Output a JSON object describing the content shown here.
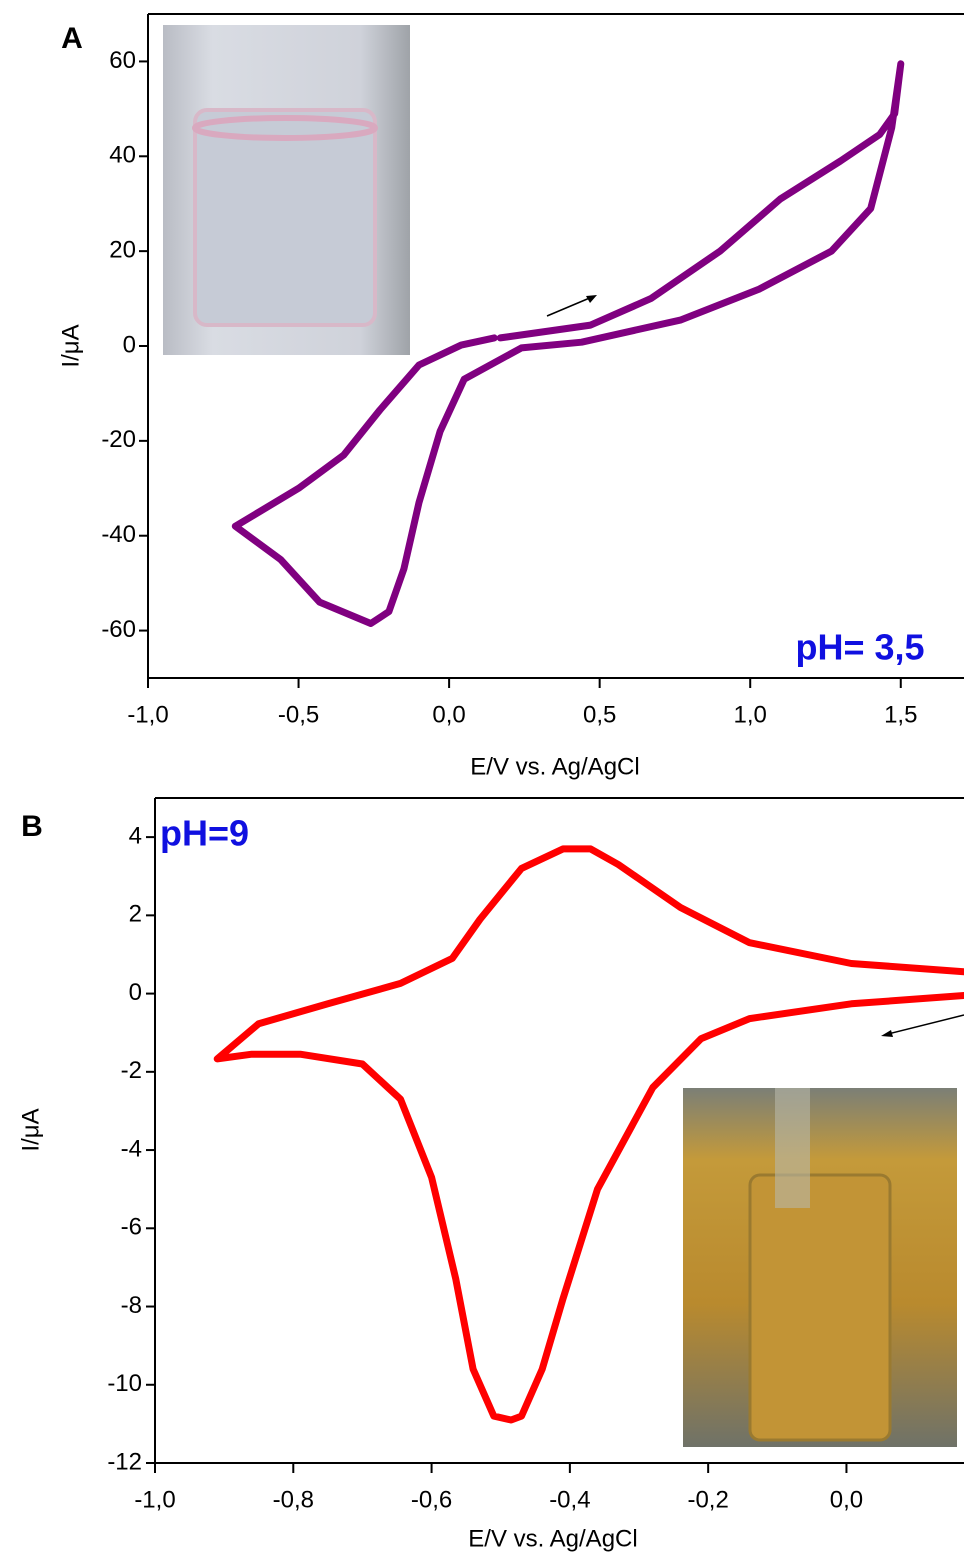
{
  "chart_data": [
    {
      "type": "line",
      "label": "A",
      "annotation": "pH= 3,5",
      "xlabel": "E/V vs. Ag/AgCl",
      "ylabel": "I/μA",
      "color": "#800080",
      "x": [
        0.17,
        0.47,
        0.67,
        0.9,
        1.1,
        1.3,
        1.43,
        1.48,
        1.5,
        1.47,
        1.4,
        1.27,
        1.03,
        0.77,
        0.44,
        0.24,
        0.05,
        -0.03,
        -0.1,
        -0.15,
        -0.2,
        -0.26,
        -0.43,
        -0.56,
        -0.71,
        -0.5,
        -0.35,
        -0.23,
        -0.1,
        0.04,
        0.15
      ],
      "values": [
        1.7,
        4.4,
        10,
        20,
        31,
        39,
        44.6,
        49,
        59.5,
        46,
        29,
        20,
        12,
        5.5,
        0.8,
        -0.4,
        -7,
        -18,
        -33,
        -47,
        -56,
        -58.5,
        -54,
        -45,
        -38,
        -30,
        -23,
        -13.5,
        -4,
        0.2,
        1.7
      ],
      "xlim": [
        -1.0,
        1.71
      ],
      "ylim": [
        -70,
        70
      ],
      "xticks": [
        {
          "value": -1.0,
          "label": "-1,0"
        },
        {
          "value": -0.5,
          "label": "-0,5"
        },
        {
          "value": 0.0,
          "label": "0,0"
        },
        {
          "value": 0.5,
          "label": "0,5"
        },
        {
          "value": 1.0,
          "label": "1,0"
        },
        {
          "value": 1.5,
          "label": "1,5"
        }
      ],
      "yticks": [
        -60,
        -40,
        -20,
        0,
        20,
        40,
        60
      ]
    },
    {
      "type": "line",
      "label": "B",
      "annotation": "pH=9",
      "xlabel": "E/V vs. Ag/AgCl",
      "ylabel": "I/μA",
      "color": "#ff0000",
      "x": [
        0.17,
        0.007,
        -0.14,
        -0.21,
        -0.28,
        -0.36,
        -0.41,
        -0.44,
        -0.47,
        -0.485,
        -0.51,
        -0.54,
        -0.565,
        -0.6,
        -0.645,
        -0.7,
        -0.79,
        -0.86,
        -0.91,
        -0.85,
        -0.75,
        -0.645,
        -0.57,
        -0.53,
        -0.47,
        -0.41,
        -0.37,
        -0.33,
        -0.24,
        -0.14,
        0.007,
        0.17
      ],
      "values": [
        -0.05,
        -0.26,
        -0.64,
        -1.15,
        -2.4,
        -5,
        -7.8,
        -9.6,
        -10.8,
        -10.9,
        -10.8,
        -9.6,
        -7.3,
        -4.7,
        -2.7,
        -1.8,
        -1.55,
        -1.55,
        -1.67,
        -0.77,
        -0.26,
        0.26,
        0.9,
        1.9,
        3.2,
        3.7,
        3.7,
        3.3,
        2.2,
        1.3,
        0.77,
        0.56
      ],
      "xlim": [
        -1.0,
        0.17
      ],
      "ylim": [
        -12,
        5
      ],
      "xticks": [
        {
          "value": -1.0,
          "label": "-1,0"
        },
        {
          "value": -0.8,
          "label": "-0,8"
        },
        {
          "value": -0.6,
          "label": "-0,6"
        },
        {
          "value": -0.4,
          "label": "-0,4"
        },
        {
          "value": -0.2,
          "label": "-0,2"
        },
        {
          "value": 0.0,
          "label": "0,0"
        }
      ],
      "yticks": [
        -12,
        -10,
        -8,
        -6,
        -4,
        -2,
        0,
        2,
        4
      ]
    }
  ]
}
